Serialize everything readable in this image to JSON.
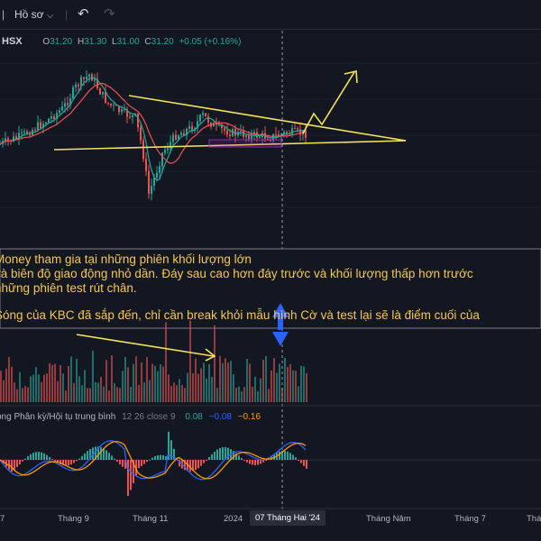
{
  "toolbar": {
    "profile_label": "Hồ sơ",
    "undo_icon": "undo-icon",
    "redo_icon": "redo-icon"
  },
  "price": {
    "symbol_tail": "HSX",
    "open_label": "O",
    "open": "31.20",
    "high_label": "H",
    "high": "31.30",
    "low_label": "L",
    "low": "31.00",
    "close_label": "C",
    "close": "31.20",
    "change": "+0.05 (+0.16%)"
  },
  "note": {
    "lines": [
      "Money tham gia tại những phiên khối lượng lớn",
      "và biên độ giao động nhỏ dần. Đáy sau cao hơn đáy trước và khối lượng thấp hơn trước",
      "những phiên test rút chân.",
      "Sóng của KBC đã sắp đến, chỉ cần break khỏi mẫu hình Cờ và test lại sẽ là điểm cuối của"
    ]
  },
  "macd": {
    "title": "ong Phân kỳ/Hội tụ trung bình",
    "params": "12 26 close 9",
    "hist": "0.08",
    "macd": "−0.08",
    "signal": "−0.16"
  },
  "xaxis": {
    "labels": [
      "7",
      "Tháng 9",
      "Tháng 11",
      "2024",
      "Tháng Năm",
      "Tháng 7",
      "Tháng"
    ],
    "cursor_label": "07 Tháng Hai '24"
  },
  "colors": {
    "up": "#26a69a",
    "down": "#ef5350",
    "pattern": "#f5e25c",
    "macd_line": "#2962ff",
    "signal_line": "#ff9800",
    "note_text": "#f5c84c"
  },
  "chart_data": {
    "type": "candlestick",
    "x_range": [
      "2023-07",
      "2024-08"
    ],
    "y_approx_range": [
      24,
      36
    ],
    "pattern": "flag / triangle",
    "series": [
      {
        "name": "",
        "kind": "price"
      },
      {
        "name": "",
        "kind": "volume"
      },
      {
        "name": "MACD",
        "kind": "indicator"
      }
    ]
  }
}
